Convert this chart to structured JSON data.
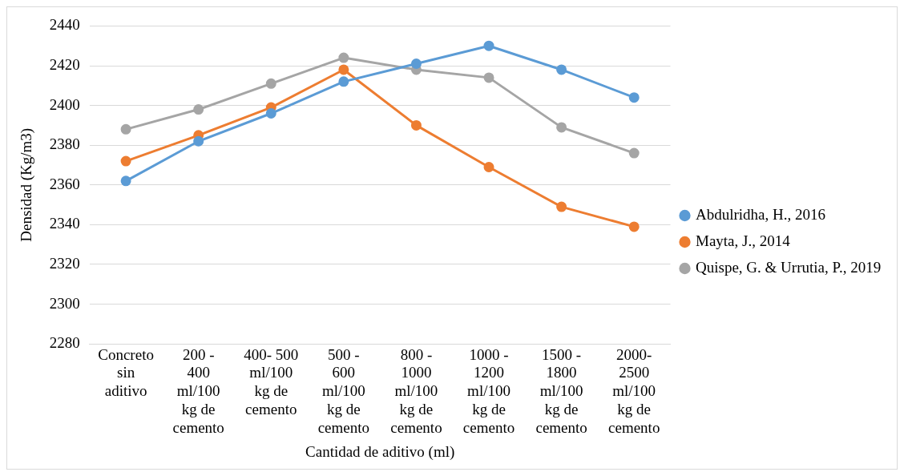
{
  "chart_data": {
    "type": "line",
    "xlabel": "Cantidad de aditivo (ml)",
    "ylabel": "Densidad (Kg/m3)",
    "categories": [
      "Concreto sin aditivo",
      "200 - 400 ml/100 kg de cemento",
      "400- 500 ml/100 kg de cemento",
      "500 - 600 ml/100 kg de cemento",
      "800 - 1000 ml/100 kg de cemento",
      "1000 - 1200 ml/100 kg de cemento",
      "1500 - 1800 ml/100 kg de cemento",
      "2000- 2500 ml/100 kg de cemento"
    ],
    "series": [
      {
        "name": "Abdulridha, H., 2016",
        "color": "#5b9bd5",
        "values": [
          2362,
          2382,
          2396,
          2412,
          2421,
          2430,
          2418,
          2404
        ]
      },
      {
        "name": "Mayta, J., 2014",
        "color": "#ed7d31",
        "values": [
          2372,
          2385,
          2399,
          2418,
          2390,
          2369,
          2349,
          2339
        ]
      },
      {
        "name": "Quispe, G. & Urrutia, P., 2019",
        "color": "#a5a5a5",
        "values": [
          2388,
          2398,
          2411,
          2424,
          2418,
          2414,
          2389,
          2376
        ]
      }
    ],
    "ylim": [
      2280,
      2440
    ],
    "yticks": [
      2280,
      2300,
      2320,
      2340,
      2360,
      2380,
      2400,
      2420,
      2440
    ],
    "grid": "y",
    "legend": "right",
    "marker": "circle",
    "line_style": "solid"
  }
}
